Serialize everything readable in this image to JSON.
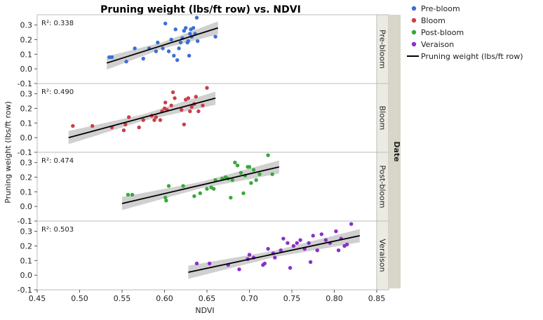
{
  "chart_data": {
    "type": "scatter",
    "title": "Pruning weight (lbs/ft row) vs. NDVI",
    "xlabel": "NDVI",
    "ylabel": "Pruning weight (lbs/ft row)",
    "group_label": "Date",
    "xlim": [
      0.45,
      0.85
    ],
    "ylim": [
      -0.1,
      0.37
    ],
    "x_ticks": [
      "0.45",
      "0.50",
      "0.55",
      "0.60",
      "0.65",
      "0.70",
      "0.75",
      "0.80",
      "0.85"
    ],
    "y_ticks": [
      "-0.1",
      "0.0",
      "0.1",
      "0.2",
      "0.3"
    ],
    "legend_position": "right",
    "legend_line_label": "Pruning weight (lbs/ft row)",
    "series": [
      {
        "name": "Pre-bloom",
        "color": "#3b6fd6",
        "r2": "R²: 0.338",
        "fit": [
          [
            0.532,
            0.04
          ],
          [
            0.663,
            0.28
          ]
        ],
        "points": [
          [
            0.535,
            0.08
          ],
          [
            0.538,
            0.08
          ],
          [
            0.555,
            0.05
          ],
          [
            0.565,
            0.14
          ],
          [
            0.575,
            0.07
          ],
          [
            0.582,
            0.14
          ],
          [
            0.59,
            0.12
          ],
          [
            0.592,
            0.18
          ],
          [
            0.598,
            0.14
          ],
          [
            0.601,
            0.31
          ],
          [
            0.605,
            0.12
          ],
          [
            0.608,
            0.2
          ],
          [
            0.611,
            0.09
          ],
          [
            0.613,
            0.27
          ],
          [
            0.615,
            0.06
          ],
          [
            0.617,
            0.14
          ],
          [
            0.619,
            0.18
          ],
          [
            0.621,
            0.21
          ],
          [
            0.623,
            0.26
          ],
          [
            0.625,
            0.28
          ],
          [
            0.627,
            0.18
          ],
          [
            0.628,
            0.19
          ],
          [
            0.63,
            0.24
          ],
          [
            0.631,
            0.27
          ],
          [
            0.632,
            0.22
          ],
          [
            0.629,
            0.09
          ],
          [
            0.634,
            0.28
          ],
          [
            0.636,
            0.24
          ],
          [
            0.638,
            0.35
          ],
          [
            0.639,
            0.19
          ],
          [
            0.66,
            0.22
          ]
        ]
      },
      {
        "name": "Bloom",
        "color": "#cc3d4a",
        "r2": "R²: 0.490",
        "fit": [
          [
            0.487,
            0.0
          ],
          [
            0.66,
            0.27
          ]
        ],
        "points": [
          [
            0.492,
            0.08
          ],
          [
            0.515,
            0.08
          ],
          [
            0.538,
            0.07
          ],
          [
            0.552,
            0.05
          ],
          [
            0.554,
            0.09
          ],
          [
            0.558,
            0.14
          ],
          [
            0.57,
            0.07
          ],
          [
            0.575,
            0.12
          ],
          [
            0.585,
            0.15
          ],
          [
            0.588,
            0.12
          ],
          [
            0.59,
            0.14
          ],
          [
            0.595,
            0.12
          ],
          [
            0.597,
            0.18
          ],
          [
            0.6,
            0.2
          ],
          [
            0.601,
            0.24
          ],
          [
            0.603,
            0.19
          ],
          [
            0.608,
            0.22
          ],
          [
            0.61,
            0.31
          ],
          [
            0.612,
            0.27
          ],
          [
            0.62,
            0.19
          ],
          [
            0.623,
            0.09
          ],
          [
            0.625,
            0.26
          ],
          [
            0.628,
            0.27
          ],
          [
            0.63,
            0.18
          ],
          [
            0.632,
            0.21
          ],
          [
            0.635,
            0.23
          ],
          [
            0.637,
            0.28
          ],
          [
            0.64,
            0.18
          ],
          [
            0.645,
            0.22
          ],
          [
            0.65,
            0.34
          ]
        ]
      },
      {
        "name": "Post-bloom",
        "color": "#3aa83a",
        "r2": "R²: 0.474",
        "fit": [
          [
            0.55,
            0.02
          ],
          [
            0.735,
            0.27
          ]
        ],
        "points": [
          [
            0.557,
            0.08
          ],
          [
            0.562,
            0.08
          ],
          [
            0.601,
            0.06
          ],
          [
            0.602,
            0.04
          ],
          [
            0.605,
            0.14
          ],
          [
            0.622,
            0.14
          ],
          [
            0.635,
            0.07
          ],
          [
            0.642,
            0.09
          ],
          [
            0.65,
            0.12
          ],
          [
            0.655,
            0.13
          ],
          [
            0.658,
            0.12
          ],
          [
            0.66,
            0.18
          ],
          [
            0.668,
            0.19
          ],
          [
            0.672,
            0.2
          ],
          [
            0.675,
            0.19
          ],
          [
            0.678,
            0.06
          ],
          [
            0.68,
            0.18
          ],
          [
            0.683,
            0.3
          ],
          [
            0.686,
            0.28
          ],
          [
            0.69,
            0.23
          ],
          [
            0.693,
            0.09
          ],
          [
            0.695,
            0.21
          ],
          [
            0.698,
            0.27
          ],
          [
            0.7,
            0.27
          ],
          [
            0.702,
            0.16
          ],
          [
            0.705,
            0.25
          ],
          [
            0.708,
            0.18
          ],
          [
            0.712,
            0.22
          ],
          [
            0.722,
            0.35
          ],
          [
            0.727,
            0.22
          ]
        ]
      },
      {
        "name": "Veraison",
        "color": "#8b2fc9",
        "r2": "R²: 0.503",
        "fit": [
          [
            0.628,
            0.02
          ],
          [
            0.83,
            0.27
          ]
        ],
        "points": [
          [
            0.638,
            0.08
          ],
          [
            0.653,
            0.08
          ],
          [
            0.675,
            0.07
          ],
          [
            0.688,
            0.04
          ],
          [
            0.698,
            0.11
          ],
          [
            0.7,
            0.14
          ],
          [
            0.705,
            0.12
          ],
          [
            0.716,
            0.07
          ],
          [
            0.718,
            0.08
          ],
          [
            0.722,
            0.18
          ],
          [
            0.728,
            0.15
          ],
          [
            0.73,
            0.12
          ],
          [
            0.737,
            0.17
          ],
          [
            0.74,
            0.25
          ],
          [
            0.745,
            0.22
          ],
          [
            0.748,
            0.05
          ],
          [
            0.752,
            0.2
          ],
          [
            0.756,
            0.22
          ],
          [
            0.76,
            0.24
          ],
          [
            0.765,
            0.18
          ],
          [
            0.77,
            0.22
          ],
          [
            0.772,
            0.09
          ],
          [
            0.775,
            0.27
          ],
          [
            0.78,
            0.17
          ],
          [
            0.785,
            0.28
          ],
          [
            0.79,
            0.24
          ],
          [
            0.795,
            0.22
          ],
          [
            0.802,
            0.3
          ],
          [
            0.805,
            0.17
          ],
          [
            0.808,
            0.25
          ],
          [
            0.812,
            0.2
          ],
          [
            0.815,
            0.21
          ],
          [
            0.82,
            0.35
          ]
        ]
      }
    ]
  }
}
